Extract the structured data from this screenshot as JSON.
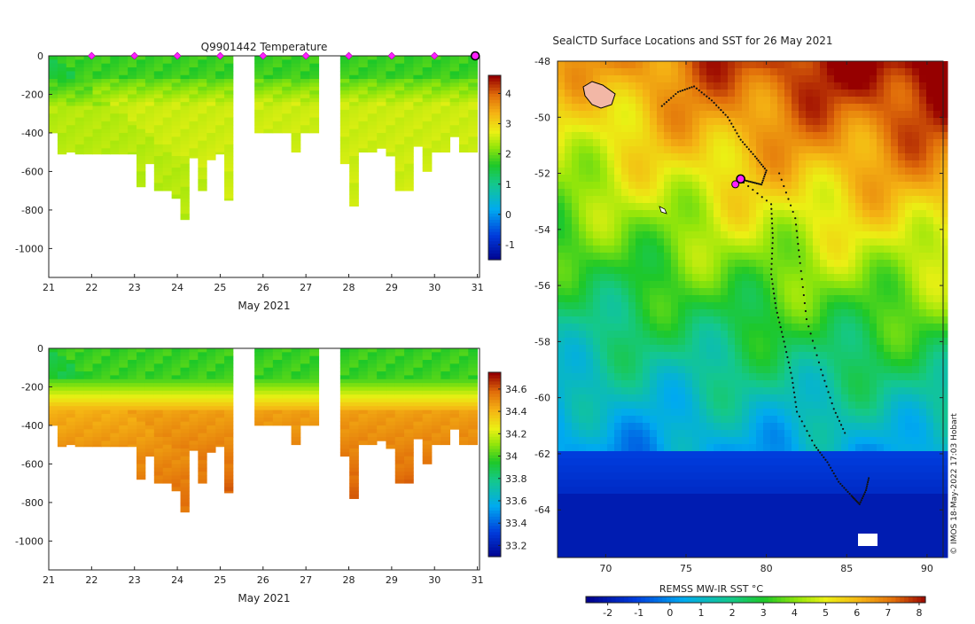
{
  "chart_data": [
    {
      "type": "heatmap",
      "title": "Q9901442  Temperature",
      "xlabel": "May 2021",
      "ylabel": "",
      "x_ticks": [
        "21",
        "22",
        "23",
        "24",
        "25",
        "26",
        "27",
        "28",
        "29",
        "30",
        "31"
      ],
      "y_ticks": [
        "0",
        "-200",
        "-400",
        "-600",
        "-800",
        "-1000"
      ],
      "xlim": [
        21,
        31.05
      ],
      "ylim": [
        -1150,
        0
      ],
      "colorbar": {
        "ticks": [
          "4",
          "3",
          "2",
          "1",
          "0",
          "-1"
        ],
        "vmin": -1.5,
        "vmax": 4.6
      },
      "profile_markers_day": [
        22,
        23,
        24,
        25,
        26,
        27,
        28,
        29,
        30
      ],
      "profile_bottom_depths_m": [
        -400,
        -510,
        -500,
        -510,
        -510,
        -510,
        -510,
        -510,
        -510,
        -510,
        -680,
        -560,
        -700,
        -700,
        -740,
        -850,
        -530,
        -700,
        -540,
        -510,
        -750,
        -400,
        -400,
        -400,
        -400,
        -500,
        -400,
        -400,
        -560,
        -780,
        -500,
        -500,
        -480,
        -520,
        -700,
        -700,
        -470,
        -600,
        -500,
        -500,
        -420,
        -500,
        -500
      ]
    },
    {
      "type": "heatmap",
      "title": "",
      "xlabel": "May 2021",
      "ylabel": "",
      "x_ticks": [
        "21",
        "22",
        "23",
        "24",
        "25",
        "26",
        "27",
        "28",
        "29",
        "30",
        "31"
      ],
      "y_ticks": [
        "0",
        "-200",
        "-400",
        "-600",
        "-800",
        "-1000"
      ],
      "xlim": [
        21,
        31.05
      ],
      "ylim": [
        -1150,
        0
      ],
      "colorbar": {
        "ticks": [
          "34.6",
          "34.4",
          "34.2",
          "34",
          "33.8",
          "33.6",
          "33.4",
          "33.2"
        ],
        "vmin": 33.1,
        "vmax": 34.75
      }
    },
    {
      "type": "heatmap",
      "title": "SealCTD Surface Locations and SST for 26 May 2021",
      "xlabel": "",
      "ylabel": "",
      "x_ticks": [
        "70",
        "75",
        "80",
        "85",
        "90"
      ],
      "y_ticks": [
        "-48",
        "-50",
        "-52",
        "-54",
        "-56",
        "-58",
        "-60",
        "-62",
        "-64"
      ],
      "xlim": [
        67,
        91
      ],
      "ylim": [
        -65.7,
        -48
      ],
      "colorbar_label": "REMSS MW-IR SST °C",
      "colorbar_ticks": [
        "-2",
        "-1",
        "0",
        "1",
        "2",
        "3",
        "4",
        "5",
        "6",
        "7",
        "8"
      ],
      "colorbar_range": [
        -2.7,
        8.2
      ],
      "track": [
        [
          73.5,
          -49.6
        ],
        [
          74.5,
          -49.1
        ],
        [
          75.5,
          -48.9
        ],
        [
          76.6,
          -49.4
        ],
        [
          77.6,
          -50.0
        ],
        [
          78.4,
          -50.8
        ],
        [
          79.3,
          -51.4
        ],
        [
          80.0,
          -51.9
        ],
        [
          79.7,
          -52.4
        ],
        [
          79.0,
          -52.3
        ],
        [
          78.3,
          -52.2
        ],
        [
          80.3,
          -53.1
        ],
        [
          80.4,
          -54.3
        ],
        [
          80.3,
          -55.6
        ],
        [
          80.6,
          -56.8
        ],
        [
          81.1,
          -58.0
        ],
        [
          81.6,
          -59.3
        ],
        [
          81.9,
          -60.5
        ],
        [
          83.0,
          -61.7
        ],
        [
          83.8,
          -62.3
        ],
        [
          84.5,
          -63.0
        ],
        [
          85.3,
          -63.5
        ],
        [
          85.8,
          -63.8
        ],
        [
          86.2,
          -63.3
        ],
        [
          86.4,
          -62.8
        ]
      ],
      "track_east": [
        [
          80.8,
          -52.0
        ],
        [
          81.8,
          -53.6
        ],
        [
          82.1,
          -55.2
        ],
        [
          82.5,
          -57.2
        ],
        [
          83.4,
          -59.0
        ],
        [
          84.2,
          -60.4
        ],
        [
          85.0,
          -61.4
        ]
      ],
      "current_position": [
        78.4,
        -52.2
      ],
      "credit": "© IMOS 18-May-2022 17:03 Hobart"
    }
  ]
}
